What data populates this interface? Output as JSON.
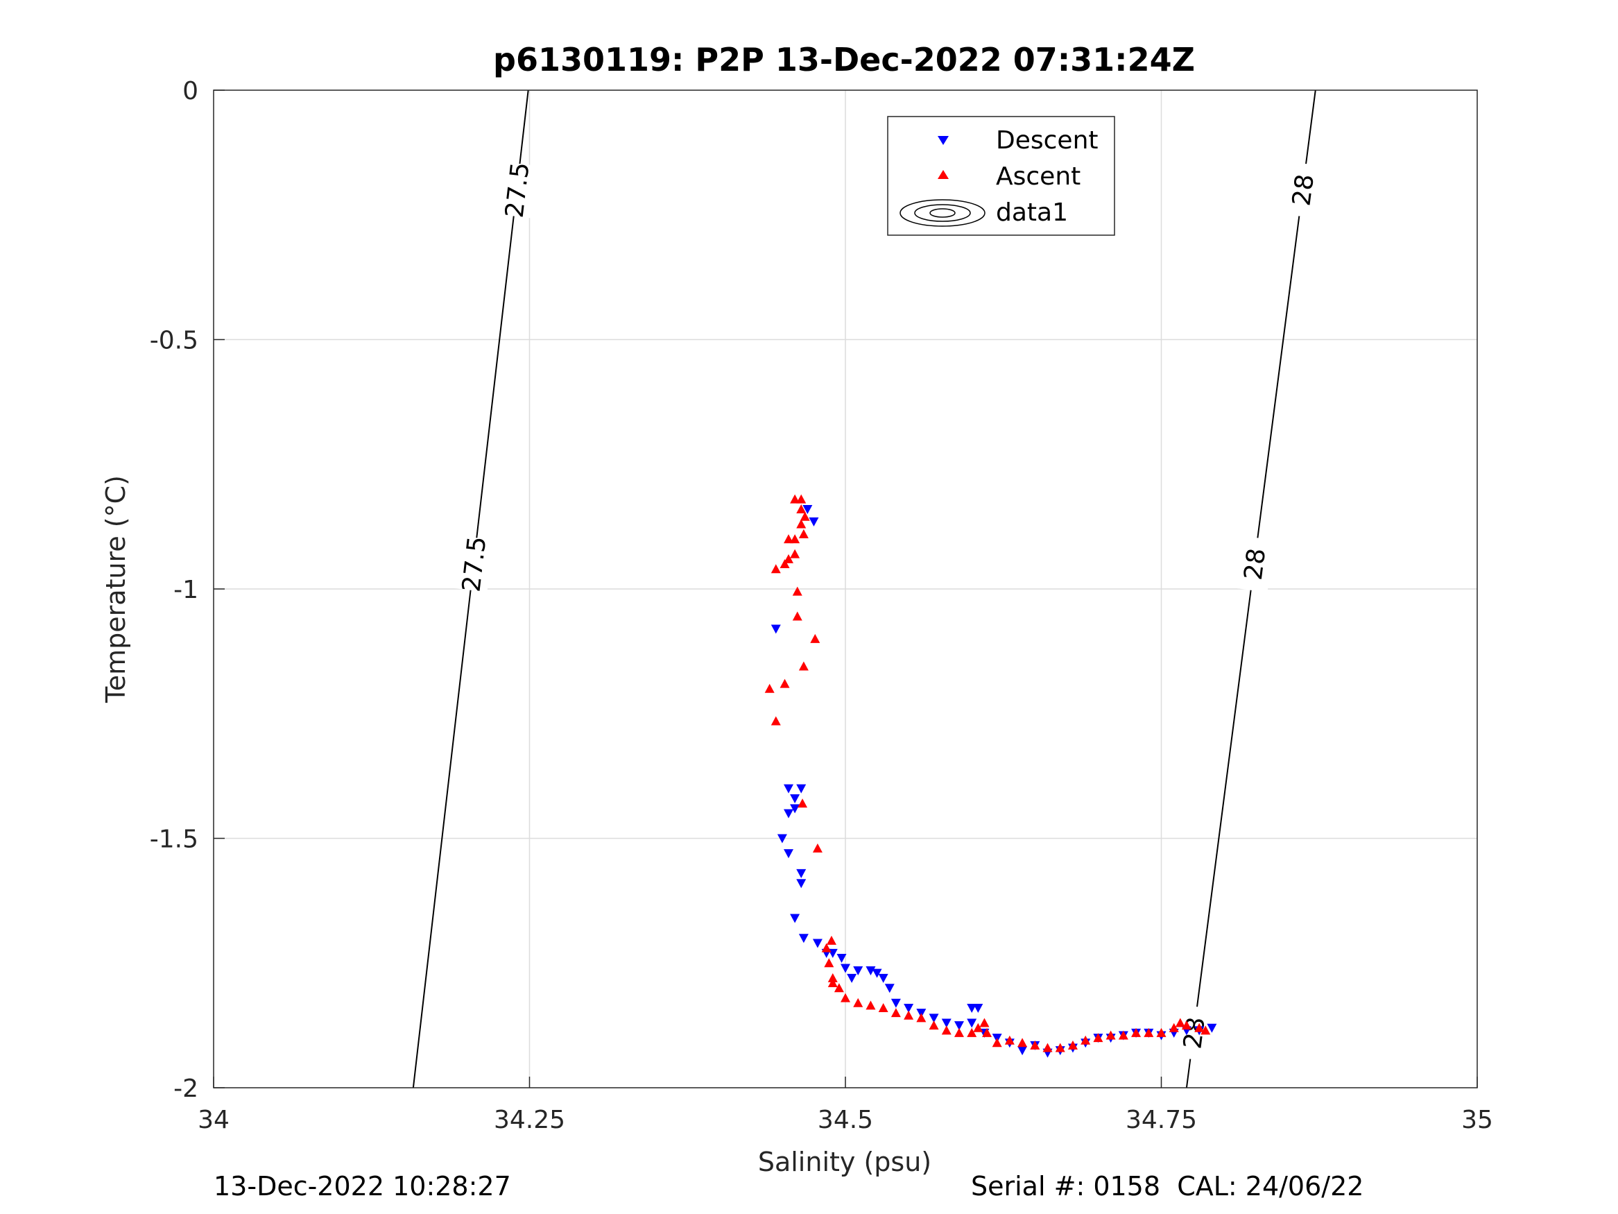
{
  "chart_data": {
    "type": "scatter",
    "title": "p6130119: P2P 13-Dec-2022 07:31:24Z",
    "xlabel": "Salinity (psu)",
    "ylabel": "Temperature (°C)",
    "xlim": [
      34,
      35
    ],
    "ylim": [
      -2,
      0
    ],
    "x_ticks": [
      34,
      34.25,
      34.5,
      34.75,
      35
    ],
    "x_tick_labels": [
      "34",
      "34.25",
      "34.5",
      "34.75",
      "35"
    ],
    "y_ticks": [
      0,
      -0.5,
      -1,
      -1.5,
      -2
    ],
    "y_tick_labels": [
      "0",
      "-0.5",
      "-1",
      "-1.5",
      "-2"
    ],
    "grid": true,
    "legend_position": "top-center",
    "legend": [
      "Descent",
      "Ascent",
      "data1"
    ],
    "colors": {
      "descent": "#0000ff",
      "ascent": "#ff0000",
      "contour": "#000000",
      "grid": "#dcdcdc"
    },
    "series": [
      {
        "name": "Descent",
        "marker": "triangle-down",
        "points": [
          [
            34.47,
            -0.84
          ],
          [
            34.475,
            -0.865
          ],
          [
            34.445,
            -1.08
          ],
          [
            34.455,
            -1.4
          ],
          [
            34.465,
            -1.4
          ],
          [
            34.46,
            -1.42
          ],
          [
            34.46,
            -1.44
          ],
          [
            34.455,
            -1.45
          ],
          [
            34.45,
            -1.5
          ],
          [
            34.455,
            -1.53
          ],
          [
            34.465,
            -1.57
          ],
          [
            34.465,
            -1.59
          ],
          [
            34.46,
            -1.66
          ],
          [
            34.467,
            -1.7
          ],
          [
            34.478,
            -1.71
          ],
          [
            34.485,
            -1.73
          ],
          [
            34.49,
            -1.73
          ],
          [
            34.497,
            -1.74
          ],
          [
            34.5,
            -1.76
          ],
          [
            34.505,
            -1.78
          ],
          [
            34.51,
            -1.765
          ],
          [
            34.52,
            -1.765
          ],
          [
            34.525,
            -1.77
          ],
          [
            34.53,
            -1.78
          ],
          [
            34.535,
            -1.8
          ],
          [
            34.54,
            -1.83
          ],
          [
            34.55,
            -1.84
          ],
          [
            34.56,
            -1.85
          ],
          [
            34.57,
            -1.86
          ],
          [
            34.58,
            -1.87
          ],
          [
            34.59,
            -1.875
          ],
          [
            34.6,
            -1.87
          ],
          [
            34.6,
            -1.84
          ],
          [
            34.605,
            -1.84
          ],
          [
            34.61,
            -1.89
          ],
          [
            34.62,
            -1.9
          ],
          [
            34.63,
            -1.91
          ],
          [
            34.64,
            -1.925
          ],
          [
            34.65,
            -1.915
          ],
          [
            34.66,
            -1.93
          ],
          [
            34.67,
            -1.925
          ],
          [
            34.68,
            -1.92
          ],
          [
            34.69,
            -1.91
          ],
          [
            34.7,
            -1.9
          ],
          [
            34.71,
            -1.9
          ],
          [
            34.72,
            -1.895
          ],
          [
            34.73,
            -1.89
          ],
          [
            34.74,
            -1.89
          ],
          [
            34.75,
            -1.895
          ],
          [
            34.76,
            -1.89
          ],
          [
            34.77,
            -1.885
          ],
          [
            34.78,
            -1.885
          ],
          [
            34.79,
            -1.88
          ]
        ]
      },
      {
        "name": "Ascent",
        "marker": "triangle-up",
        "points": [
          [
            34.46,
            -0.82
          ],
          [
            34.465,
            -0.82
          ],
          [
            34.465,
            -0.84
          ],
          [
            34.468,
            -0.855
          ],
          [
            34.465,
            -0.87
          ],
          [
            34.467,
            -0.89
          ],
          [
            34.46,
            -0.9
          ],
          [
            34.455,
            -0.9
          ],
          [
            34.46,
            -0.93
          ],
          [
            34.455,
            -0.94
          ],
          [
            34.445,
            -0.96
          ],
          [
            34.452,
            -0.95
          ],
          [
            34.462,
            -1.005
          ],
          [
            34.462,
            -1.055
          ],
          [
            34.476,
            -1.1
          ],
          [
            34.467,
            -1.155
          ],
          [
            34.452,
            -1.19
          ],
          [
            34.44,
            -1.2
          ],
          [
            34.445,
            -1.265
          ],
          [
            34.466,
            -1.43
          ],
          [
            34.478,
            -1.52
          ],
          [
            34.489,
            -1.705
          ],
          [
            34.485,
            -1.72
          ],
          [
            34.487,
            -1.75
          ],
          [
            34.49,
            -1.78
          ],
          [
            34.49,
            -1.79
          ],
          [
            34.495,
            -1.8
          ],
          [
            34.5,
            -1.82
          ],
          [
            34.51,
            -1.83
          ],
          [
            34.52,
            -1.835
          ],
          [
            34.53,
            -1.84
          ],
          [
            34.54,
            -1.85
          ],
          [
            34.55,
            -1.855
          ],
          [
            34.56,
            -1.86
          ],
          [
            34.57,
            -1.875
          ],
          [
            34.58,
            -1.885
          ],
          [
            34.59,
            -1.89
          ],
          [
            34.6,
            -1.89
          ],
          [
            34.605,
            -1.88
          ],
          [
            34.61,
            -1.87
          ],
          [
            34.612,
            -1.89
          ],
          [
            34.62,
            -1.91
          ],
          [
            34.63,
            -1.905
          ],
          [
            34.64,
            -1.91
          ],
          [
            34.65,
            -1.915
          ],
          [
            34.66,
            -1.92
          ],
          [
            34.67,
            -1.92
          ],
          [
            34.68,
            -1.915
          ],
          [
            34.69,
            -1.905
          ],
          [
            34.7,
            -1.9
          ],
          [
            34.71,
            -1.895
          ],
          [
            34.72,
            -1.895
          ],
          [
            34.73,
            -1.89
          ],
          [
            34.74,
            -1.89
          ],
          [
            34.75,
            -1.89
          ],
          [
            34.76,
            -1.88
          ],
          [
            34.765,
            -1.87
          ],
          [
            34.77,
            -1.875
          ],
          [
            34.78,
            -1.88
          ],
          [
            34.785,
            -1.885
          ]
        ]
      }
    ],
    "contours": [
      {
        "value": "27.5",
        "points": [
          [
            34.158,
            -2.0
          ],
          [
            34.249,
            0.0
          ]
        ],
        "labels_at_y": [
          -0.95,
          -0.2
        ]
      },
      {
        "value": "28",
        "points": [
          [
            34.77,
            -2.0
          ],
          [
            34.872,
            0.0
          ]
        ],
        "labels_at_y": [
          -0.95,
          -0.2,
          -1.89
        ]
      }
    ]
  },
  "footer": {
    "left": "13-Dec-2022 10:28:27",
    "right": "Serial #: 0158  CAL: 24/06/22"
  }
}
